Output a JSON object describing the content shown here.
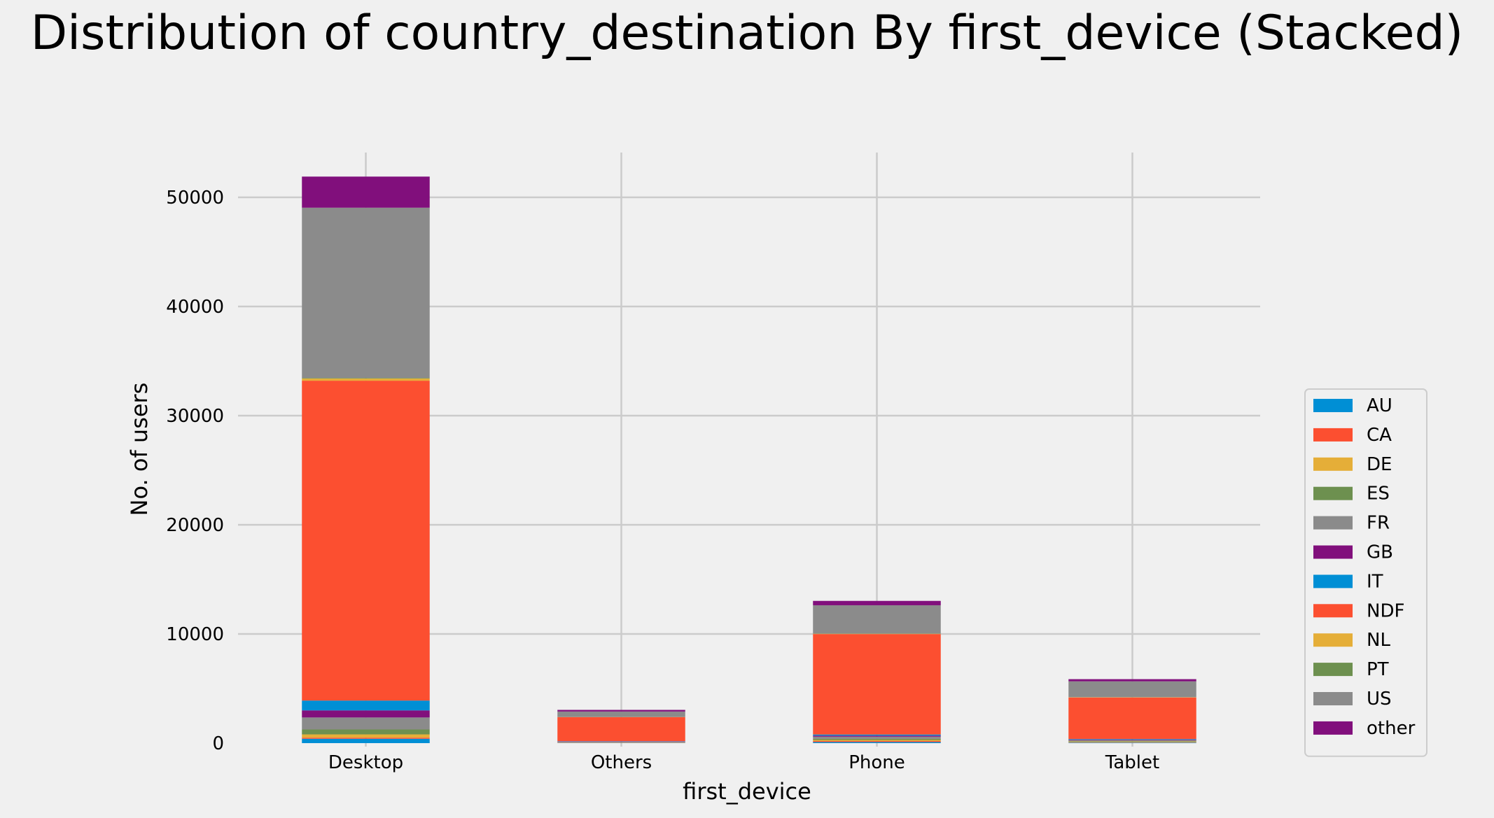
{
  "chart_data": {
    "type": "bar",
    "stacked": true,
    "title": "Distribution of country_destination By first_device (Stacked)",
    "xlabel": "first_device",
    "ylabel": "No. of users",
    "categories": [
      "Desktop",
      "Others",
      "Phone",
      "Tablet"
    ],
    "ylim": [
      0,
      54500
    ],
    "yticks": [
      0,
      10000,
      20000,
      30000,
      40000,
      50000
    ],
    "grid": true,
    "legend_position": "right",
    "series": [
      {
        "name": "AU",
        "color": "#008fd5",
        "values": [
          400,
          20,
          100,
          50
        ]
      },
      {
        "name": "CA",
        "color": "#fc4f30",
        "values": [
          100,
          15,
          90,
          30
        ]
      },
      {
        "name": "DE",
        "color": "#e5ae38",
        "values": [
          300,
          15,
          100,
          50
        ]
      },
      {
        "name": "ES",
        "color": "#6d904f",
        "values": [
          450,
          20,
          100,
          50
        ]
      },
      {
        "name": "FR",
        "color": "#8b8b8b",
        "values": [
          1100,
          50,
          200,
          100
        ]
      },
      {
        "name": "GB",
        "color": "#810f7c",
        "values": [
          650,
          30,
          100,
          50
        ]
      },
      {
        "name": "IT",
        "color": "#008fd5",
        "values": [
          900,
          30,
          100,
          50
        ]
      },
      {
        "name": "NDF",
        "color": "#fc4f30",
        "values": [
          29300,
          2200,
          9200,
          3800
        ]
      },
      {
        "name": "NL",
        "color": "#e5ae38",
        "values": [
          200,
          10,
          30,
          20
        ]
      },
      {
        "name": "PT",
        "color": "#6d904f",
        "values": [
          50,
          5,
          10,
          10
        ]
      },
      {
        "name": "US",
        "color": "#8b8b8b",
        "values": [
          15600,
          500,
          2600,
          1450
        ]
      },
      {
        "name": "other",
        "color": "#810f7c",
        "values": [
          2850,
          150,
          400,
          200
        ]
      }
    ]
  }
}
